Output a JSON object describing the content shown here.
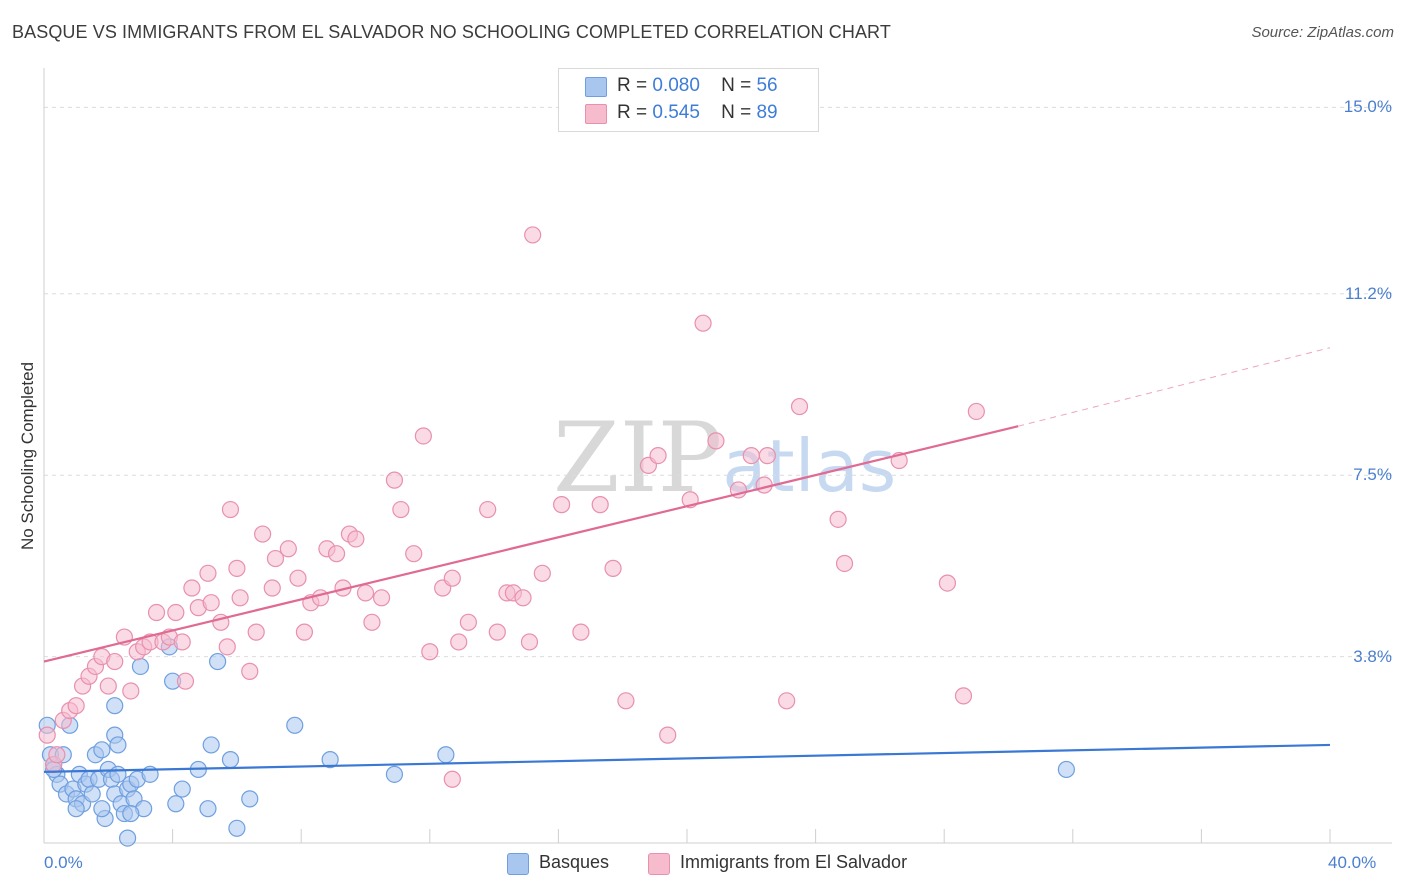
{
  "title": "BASQUE VS IMMIGRANTS FROM EL SALVADOR NO SCHOOLING COMPLETED CORRELATION CHART",
  "source": "Source: ZipAtlas.com",
  "watermark": {
    "zip": "ZIP",
    "atlas": "atlas"
  },
  "colors": {
    "basque": "#3a78d4",
    "salvador": "#e06a93",
    "basque_fill": "#a9c6ef",
    "salvador_fill": "#f6bccd",
    "tick_label": "#4a7fcf"
  },
  "legend": {
    "rows": [
      {
        "r_label": "R =",
        "r_value": "0.080",
        "n_label": "N =",
        "n_value": "56"
      },
      {
        "r_label": "R =",
        "r_value": "0.545",
        "n_label": "N =",
        "n_value": "89"
      }
    ]
  },
  "bottom_legend": [
    "Basques",
    "Immigrants from El Salvador"
  ],
  "chart_data": {
    "type": "scatter",
    "ylabel": "No Schooling Completed",
    "xlabel": "",
    "xlim": [
      0,
      40
    ],
    "ylim": [
      0,
      15.6
    ],
    "x_tick_labels": [
      "0.0%",
      "40.0%"
    ],
    "y_ticks": [
      {
        "value": 3.8,
        "label": "3.8%"
      },
      {
        "value": 7.5,
        "label": "7.5%"
      },
      {
        "value": 11.2,
        "label": "11.2%"
      },
      {
        "value": 15.0,
        "label": "15.0%"
      }
    ],
    "grid": true,
    "series": [
      {
        "name": "Basques",
        "r": 0.08,
        "n": 56,
        "trend": {
          "x0": 0,
          "y0": 1.45,
          "x1": 40,
          "y1": 2.0
        },
        "points": [
          [
            0.1,
            2.4
          ],
          [
            0.2,
            1.8
          ],
          [
            0.3,
            1.6
          ],
          [
            0.4,
            1.4
          ],
          [
            0.5,
            1.2
          ],
          [
            0.6,
            1.8
          ],
          [
            0.7,
            1.0
          ],
          [
            0.8,
            2.4
          ],
          [
            0.9,
            1.1
          ],
          [
            1.0,
            0.9
          ],
          [
            1.1,
            1.4
          ],
          [
            1.2,
            0.8
          ],
          [
            1.3,
            1.2
          ],
          [
            1.4,
            1.3
          ],
          [
            1.5,
            1.0
          ],
          [
            1.6,
            1.8
          ],
          [
            1.7,
            1.3
          ],
          [
            1.8,
            1.9
          ],
          [
            1.9,
            0.5
          ],
          [
            2.0,
            1.5
          ],
          [
            2.1,
            1.3
          ],
          [
            2.2,
            1.0
          ],
          [
            2.3,
            1.4
          ],
          [
            2.2,
            2.2
          ],
          [
            2.2,
            2.8
          ],
          [
            2.3,
            2.0
          ],
          [
            2.4,
            0.8
          ],
          [
            2.5,
            0.6
          ],
          [
            2.6,
            1.1
          ],
          [
            2.7,
            1.2
          ],
          [
            2.8,
            0.9
          ],
          [
            2.9,
            1.3
          ],
          [
            3.0,
            3.6
          ],
          [
            3.1,
            0.7
          ],
          [
            3.3,
            1.4
          ],
          [
            2.6,
            0.1
          ],
          [
            3.9,
            4.0
          ],
          [
            4.0,
            3.3
          ],
          [
            4.1,
            0.8
          ],
          [
            4.3,
            1.1
          ],
          [
            4.8,
            1.5
          ],
          [
            5.2,
            2.0
          ],
          [
            5.1,
            0.7
          ],
          [
            5.4,
            3.7
          ],
          [
            5.8,
            1.7
          ],
          [
            6.0,
            0.3
          ],
          [
            6.4,
            0.9
          ],
          [
            7.8,
            2.4
          ],
          [
            8.9,
            1.7
          ],
          [
            10.9,
            1.4
          ],
          [
            12.5,
            1.8
          ],
          [
            31.8,
            1.5
          ],
          [
            0.3,
            1.5
          ],
          [
            1.8,
            0.7
          ],
          [
            2.7,
            0.6
          ],
          [
            1.0,
            0.7
          ]
        ]
      },
      {
        "name": "Immigrants from El Salvador",
        "r": 0.545,
        "n": 89,
        "trend": {
          "x0": 0,
          "y0": 3.7,
          "x1": 30.3,
          "y1": 8.5
        },
        "trend_dashed": {
          "x0": 30.3,
          "y0": 8.5,
          "x1": 40,
          "y1": 10.1
        },
        "points": [
          [
            0.1,
            2.2
          ],
          [
            0.3,
            1.6
          ],
          [
            0.4,
            1.8
          ],
          [
            0.6,
            2.5
          ],
          [
            0.8,
            2.7
          ],
          [
            1.0,
            2.8
          ],
          [
            1.2,
            3.2
          ],
          [
            1.4,
            3.4
          ],
          [
            1.6,
            3.6
          ],
          [
            1.8,
            3.8
          ],
          [
            2.0,
            3.2
          ],
          [
            2.2,
            3.7
          ],
          [
            2.5,
            4.2
          ],
          [
            2.7,
            3.1
          ],
          [
            2.9,
            3.9
          ],
          [
            3.1,
            4.0
          ],
          [
            3.3,
            4.1
          ],
          [
            3.5,
            4.7
          ],
          [
            3.7,
            4.1
          ],
          [
            3.9,
            4.2
          ],
          [
            4.1,
            4.7
          ],
          [
            4.3,
            4.1
          ],
          [
            4.4,
            3.3
          ],
          [
            4.6,
            5.2
          ],
          [
            4.8,
            4.8
          ],
          [
            5.1,
            5.5
          ],
          [
            5.2,
            4.9
          ],
          [
            5.5,
            4.5
          ],
          [
            5.7,
            4.0
          ],
          [
            6.0,
            5.6
          ],
          [
            6.1,
            5.0
          ],
          [
            6.4,
            3.5
          ],
          [
            6.6,
            4.3
          ],
          [
            6.8,
            6.3
          ],
          [
            7.1,
            5.2
          ],
          [
            7.2,
            5.8
          ],
          [
            7.6,
            6.0
          ],
          [
            7.9,
            5.4
          ],
          [
            8.1,
            4.3
          ],
          [
            8.3,
            4.9
          ],
          [
            8.6,
            5.0
          ],
          [
            8.8,
            6.0
          ],
          [
            9.1,
            5.9
          ],
          [
            9.3,
            5.2
          ],
          [
            9.5,
            6.3
          ],
          [
            9.7,
            6.2
          ],
          [
            10.0,
            5.1
          ],
          [
            10.2,
            4.5
          ],
          [
            10.5,
            5.0
          ],
          [
            10.9,
            7.4
          ],
          [
            11.1,
            6.8
          ],
          [
            11.5,
            5.9
          ],
          [
            11.8,
            8.3
          ],
          [
            12.0,
            3.9
          ],
          [
            12.4,
            5.2
          ],
          [
            12.7,
            5.4
          ],
          [
            12.9,
            4.1
          ],
          [
            13.2,
            4.5
          ],
          [
            13.8,
            6.8
          ],
          [
            14.1,
            4.3
          ],
          [
            14.4,
            5.1
          ],
          [
            14.6,
            5.1
          ],
          [
            14.9,
            5.0
          ],
          [
            15.1,
            4.1
          ],
          [
            15.5,
            5.5
          ],
          [
            16.1,
            6.9
          ],
          [
            16.7,
            4.3
          ],
          [
            17.3,
            6.9
          ],
          [
            17.7,
            5.6
          ],
          [
            18.1,
            2.9
          ],
          [
            18.8,
            7.7
          ],
          [
            19.1,
            7.9
          ],
          [
            19.4,
            2.2
          ],
          [
            20.1,
            7.0
          ],
          [
            20.5,
            10.6
          ],
          [
            20.9,
            8.2
          ],
          [
            21.6,
            7.2
          ],
          [
            22.0,
            7.9
          ],
          [
            22.4,
            7.3
          ],
          [
            22.5,
            7.9
          ],
          [
            23.1,
            2.9
          ],
          [
            23.5,
            8.9
          ],
          [
            24.7,
            6.6
          ],
          [
            24.9,
            5.7
          ],
          [
            26.6,
            7.8
          ],
          [
            28.1,
            5.3
          ],
          [
            28.6,
            3.0
          ],
          [
            29.0,
            8.8
          ],
          [
            12.7,
            1.3
          ]
        ]
      }
    ],
    "outlier_note": "",
    "extra_points_salvador": [
      [
        15.2,
        12.4
      ],
      [
        5.8,
        6.8
      ]
    ]
  }
}
